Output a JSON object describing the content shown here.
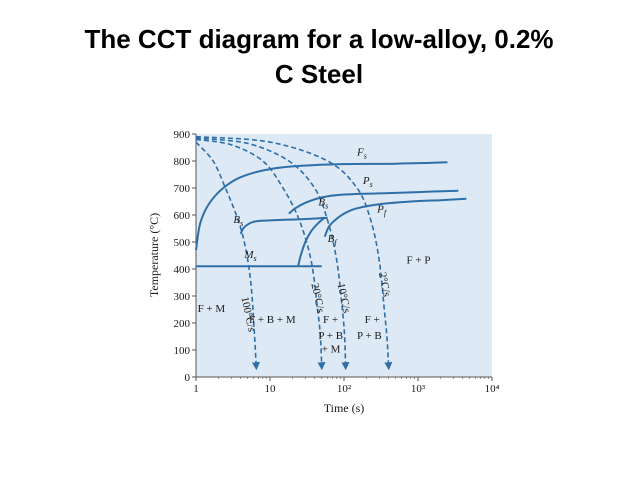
{
  "slide": {
    "title_line1": "The CCT diagram for a low-alloy, 0.2%",
    "title_line2": "C Steel"
  },
  "colors": {
    "plot_background": "#dde9f5",
    "curve": "#2f6fa8",
    "axis": "#555555",
    "text": "#1a1a1a"
  },
  "chart_data": {
    "type": "line",
    "xlabel": "Time (s)",
    "ylabel": "Temperature (°C)",
    "x_scale": "log",
    "xlim": [
      1,
      10000
    ],
    "ylim": [
      0,
      900
    ],
    "x_ticks": [
      {
        "value": 1,
        "label": "1"
      },
      {
        "value": 10,
        "label": "10"
      },
      {
        "value": 100,
        "label": "10²"
      },
      {
        "value": 1000,
        "label": "10³"
      },
      {
        "value": 10000,
        "label": "10⁴"
      }
    ],
    "y_ticks": [
      0,
      100,
      200,
      300,
      400,
      500,
      600,
      700,
      800,
      900
    ],
    "curves": [
      {
        "name": "F_s",
        "points": [
          [
            1.0,
            470
          ],
          [
            1.12,
            560
          ],
          [
            1.35,
            620
          ],
          [
            1.8,
            670
          ],
          [
            2.6,
            710
          ],
          [
            4,
            740
          ],
          [
            8,
            765
          ],
          [
            20,
            780
          ],
          [
            80,
            788
          ],
          [
            500,
            790
          ],
          [
            2500,
            795
          ]
        ]
      },
      {
        "name": "P_s",
        "points": [
          [
            18,
            605
          ],
          [
            22,
            625
          ],
          [
            30,
            645
          ],
          [
            50,
            665
          ],
          [
            90,
            675
          ],
          [
            300,
            680
          ],
          [
            1000,
            685
          ],
          [
            3500,
            690
          ]
        ]
      },
      {
        "name": "P_f",
        "points": [
          [
            55,
            520
          ],
          [
            62,
            555
          ],
          [
            75,
            580
          ],
          [
            100,
            605
          ],
          [
            150,
            625
          ],
          [
            300,
            640
          ],
          [
            800,
            650
          ],
          [
            2000,
            655
          ],
          [
            4500,
            660
          ]
        ]
      },
      {
        "name": "B_s",
        "points": [
          [
            4,
            530
          ],
          [
            4.5,
            555
          ],
          [
            6,
            575
          ],
          [
            10,
            580
          ],
          [
            30,
            585
          ],
          [
            60,
            590
          ]
        ]
      },
      {
        "name": "B_f",
        "points": [
          [
            24,
            410
          ],
          [
            26,
            450
          ],
          [
            30,
            500
          ],
          [
            36,
            540
          ],
          [
            45,
            570
          ],
          [
            55,
            590
          ]
        ]
      },
      {
        "name": "M_s",
        "points": [
          [
            1,
            410
          ],
          [
            50,
            410
          ]
        ]
      }
    ],
    "cooling_curves": [
      {
        "name": "100°C/s",
        "points": [
          [
            1,
            870
          ],
          [
            1.7,
            800
          ],
          [
            2.5,
            700
          ],
          [
            3.5,
            600
          ],
          [
            4.5,
            500
          ],
          [
            5.5,
            350
          ],
          [
            6.2,
            150
          ],
          [
            6.5,
            40
          ]
        ]
      },
      {
        "name": "20°C/s",
        "points": [
          [
            1,
            880
          ],
          [
            3,
            860
          ],
          [
            8,
            800
          ],
          [
            15,
            700
          ],
          [
            25,
            580
          ],
          [
            36,
            430
          ],
          [
            44,
            250
          ],
          [
            48,
            150
          ],
          [
            50,
            40
          ]
        ]
      },
      {
        "name": "10°C/s",
        "points": [
          [
            1,
            885
          ],
          [
            5,
            865
          ],
          [
            18,
            800
          ],
          [
            40,
            700
          ],
          [
            60,
            580
          ],
          [
            80,
            430
          ],
          [
            95,
            250
          ],
          [
            102,
            150
          ],
          [
            105,
            40
          ]
        ]
      },
      {
        "name": "2°C/s",
        "points": [
          [
            1,
            890
          ],
          [
            10,
            870
          ],
          [
            60,
            800
          ],
          [
            150,
            700
          ],
          [
            230,
            580
          ],
          [
            300,
            430
          ],
          [
            350,
            250
          ],
          [
            380,
            150
          ],
          [
            400,
            40
          ]
        ]
      }
    ],
    "labels": [
      {
        "text": "F",
        "sub": "s",
        "x": 150,
        "y": 820
      },
      {
        "text": "P",
        "sub": "s",
        "x": 180,
        "y": 715
      },
      {
        "text": "P",
        "sub": "f",
        "x": 280,
        "y": 610
      },
      {
        "text": "B",
        "sub": "s",
        "x": 45,
        "y": 635
      },
      {
        "text": "B",
        "sub": "s",
        "x": 3.2,
        "y": 570
      },
      {
        "text": "B",
        "sub": "f",
        "x": 60,
        "y": 500
      },
      {
        "text": "M",
        "sub": "s",
        "x": 4.5,
        "y": 440
      },
      {
        "text": "F + P",
        "sub": "",
        "x": 700,
        "y": 420
      },
      {
        "text": "F + M",
        "sub": "",
        "x": 1.05,
        "y": 240
      },
      {
        "text": "F + B + M",
        "sub": "",
        "x": 5.2,
        "y": 200
      },
      {
        "text": "F +",
        "sub": "",
        "x": 52,
        "y": 200
      },
      {
        "text": "P + B",
        "sub": "",
        "x": 45,
        "y": 140
      },
      {
        "text": "+ M",
        "sub": "",
        "x": 50,
        "y": 90
      },
      {
        "text": "F +",
        "sub": "",
        "x": 190,
        "y": 200
      },
      {
        "text": "P + B",
        "sub": "",
        "x": 150,
        "y": 140
      }
    ],
    "rate_labels": [
      {
        "text": "100°C/s",
        "x": 4.6,
        "y": 230
      },
      {
        "text": "20°C/s",
        "x": 40,
        "y": 290
      },
      {
        "text": "10°C/s",
        "x": 90,
        "y": 290
      },
      {
        "text": "2°C/s",
        "x": 320,
        "y": 340
      }
    ]
  }
}
